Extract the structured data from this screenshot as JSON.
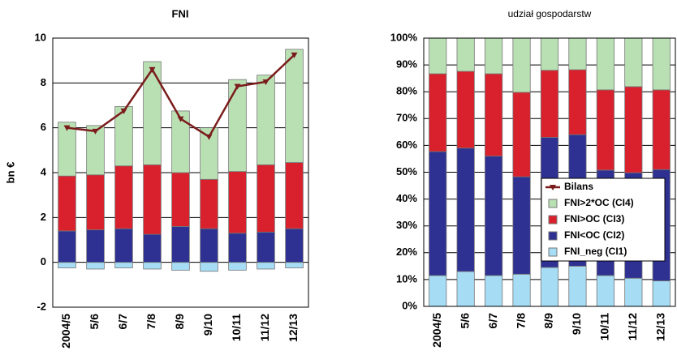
{
  "chart_data": [
    {
      "type": "bar",
      "stacked": true,
      "title": "FNI",
      "ylabel": "bn €",
      "categories": [
        "2004/5",
        "5/6",
        "6/7",
        "7/8",
        "8/9",
        "9/10",
        "10/11",
        "11/12",
        "12/13"
      ],
      "ylim": [
        -2,
        10
      ],
      "yticks": [
        -2,
        0,
        2,
        4,
        6,
        8,
        10
      ],
      "grid": true,
      "series": [
        {
          "name": "FNI_neg (CI1)",
          "color": "#a6dcf4",
          "values": [
            -0.25,
            -0.3,
            -0.25,
            -0.3,
            -0.35,
            -0.4,
            -0.35,
            -0.3,
            -0.25
          ]
        },
        {
          "name": "FNI<OC (CI2)",
          "color": "#2e3192",
          "values": [
            1.4,
            1.45,
            1.5,
            1.25,
            1.6,
            1.5,
            1.3,
            1.35,
            1.5
          ]
        },
        {
          "name": "FNI>OC (CI3)",
          "color": "#d9212d",
          "values": [
            2.45,
            2.45,
            2.8,
            3.1,
            2.4,
            2.2,
            2.75,
            3.0,
            2.95
          ]
        },
        {
          "name": "FNI>2*OC (CI4)",
          "color": "#b9e0b3",
          "values": [
            2.4,
            2.2,
            2.65,
            4.6,
            2.75,
            2.3,
            4.1,
            4.0,
            5.05
          ]
        },
        {
          "name": "Bilans",
          "type": "line",
          "color": "#7b1c1c",
          "values": [
            6.0,
            5.85,
            6.75,
            8.6,
            6.4,
            5.6,
            7.85,
            8.05,
            9.25
          ]
        }
      ]
    },
    {
      "type": "bar",
      "stacked": true,
      "title": "udział gospodarstw",
      "categories": [
        "2004/5",
        "5/6",
        "6/7",
        "7/8",
        "8/9",
        "9/10",
        "10/11",
        "11/12",
        "12/13"
      ],
      "ylim": [
        0,
        100
      ],
      "yticks": [
        {
          "value": 0,
          "label": "0%"
        },
        {
          "value": 10,
          "label": "10%"
        },
        {
          "value": 20,
          "label": "20%"
        },
        {
          "value": 30,
          "label": "30%"
        },
        {
          "value": 40,
          "label": "40%"
        },
        {
          "value": 50,
          "label": "50%"
        },
        {
          "value": 60,
          "label": "60%"
        },
        {
          "value": 70,
          "label": "70%"
        },
        {
          "value": 80,
          "label": "80%"
        },
        {
          "value": 90,
          "label": "90%"
        },
        {
          "value": 100,
          "label": "100%"
        }
      ],
      "grid": true,
      "series": [
        {
          "color": "#a6dcf4",
          "values": [
            11.5,
            13,
            11.5,
            12,
            14.5,
            15,
            11.5,
            10.5,
            9.5
          ]
        },
        {
          "color": "#2e3192",
          "values": [
            46.2,
            46,
            44.5,
            36.3,
            48.5,
            49,
            39.3,
            39.3,
            41.5
          ]
        },
        {
          "color": "#d9212d",
          "values": [
            29,
            28.6,
            30.7,
            31.5,
            25,
            24.2,
            29.9,
            32.1,
            29.7
          ]
        },
        {
          "color": "#b9e0b3",
          "values": [
            13.3,
            12.4,
            13.3,
            20.2,
            12,
            11.8,
            19.3,
            18.1,
            19.3
          ]
        }
      ]
    }
  ]
}
